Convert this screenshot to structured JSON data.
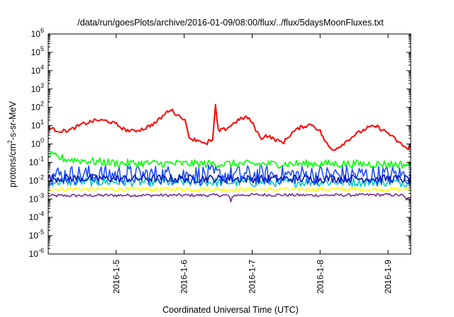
{
  "chart_data": {
    "type": "line",
    "title": "/data/run/goesPlots/archive/2016-01-09/08:00/flux/../flux/5daysMoonFluxes.txt",
    "xlabel": "Coordinated Universal Time (UTC)",
    "ylabel": {
      "base": "protons/cm",
      "sup": "2",
      "rest": "-s-sr-MeV"
    },
    "y_scale": "log",
    "ylim": [
      1e-06,
      1000000.0
    ],
    "y_ticks": [
      {
        "exp": "-6",
        "value": 1e-06
      },
      {
        "exp": "-5",
        "value": 1e-05
      },
      {
        "exp": "-4",
        "value": 0.0001
      },
      {
        "exp": "-3",
        "value": 0.001
      },
      {
        "exp": "-2",
        "value": 0.01
      },
      {
        "exp": "-1",
        "value": 0.1
      },
      {
        "exp": "0",
        "value": 1
      },
      {
        "exp": "1",
        "value": 10
      },
      {
        "exp": "2",
        "value": 100
      },
      {
        "exp": "3",
        "value": 1000
      },
      {
        "exp": "4",
        "value": 10000
      },
      {
        "exp": "5",
        "value": 100000
      },
      {
        "exp": "6",
        "value": 1000000
      }
    ],
    "y_tick_base": "10",
    "xlim": [
      "2016-01-04 00:00",
      "2016-01-09 08:00"
    ],
    "x_ticks": [
      {
        "label": "2016-1-5",
        "value": "2016-01-05 00:00"
      },
      {
        "label": "2016-1-6",
        "value": "2016-01-06 00:00"
      },
      {
        "label": "2016-1-7",
        "value": "2016-01-07 00:00"
      },
      {
        "label": "2016-1-8",
        "value": "2016-01-08 00:00"
      },
      {
        "label": "2016-1-9",
        "value": "2016-01-09 00:00"
      }
    ],
    "grid": false,
    "legend": "none",
    "series": [
      {
        "color": "#7b2d8e",
        "noise": 0.08,
        "points": [
          [
            "2016-01-04 00:00",
            0.0015
          ],
          [
            "2016-01-05 00:00",
            0.0016
          ],
          [
            "2016-01-06 00:00",
            0.0016
          ],
          [
            "2016-01-06 15:50",
            0.0016
          ],
          [
            "2016-01-06 16:30",
            0.0006
          ],
          [
            "2016-01-06 17:10",
            0.0016
          ],
          [
            "2016-01-07 00:00",
            0.0017
          ],
          [
            "2016-01-08 00:00",
            0.0016
          ],
          [
            "2016-01-09 00:00",
            0.0017
          ],
          [
            "2016-01-09 05:00",
            0.0016
          ],
          [
            "2016-01-09 06:30",
            0.001
          ],
          [
            "2016-01-09 08:00",
            0.0011
          ]
        ]
      },
      {
        "color": "#ffff00",
        "noise": 0.1,
        "points": [
          [
            "2016-01-04 00:00",
            0.0035
          ],
          [
            "2016-01-05 00:00",
            0.0034
          ],
          [
            "2016-01-06 00:00",
            0.0034
          ],
          [
            "2016-01-07 00:00",
            0.0033
          ],
          [
            "2016-01-08 00:00",
            0.0034
          ],
          [
            "2016-01-09 00:00",
            0.0034
          ],
          [
            "2016-01-09 08:00",
            0.0033
          ]
        ]
      },
      {
        "color": "#00c8c8",
        "noise": 0.25,
        "points": [
          [
            "2016-01-04 00:00",
            0.009
          ],
          [
            "2016-01-05 00:00",
            0.0085
          ],
          [
            "2016-01-06 00:00",
            0.0085
          ],
          [
            "2016-01-07 00:00",
            0.008
          ],
          [
            "2016-01-08 00:00",
            0.0085
          ],
          [
            "2016-01-09 00:00",
            0.0085
          ],
          [
            "2016-01-09 08:00",
            0.008
          ]
        ]
      },
      {
        "color": "#1e50ff",
        "noise": 0.55,
        "points": [
          [
            "2016-01-04 00:00",
            0.02
          ],
          [
            "2016-01-05 00:00",
            0.021
          ],
          [
            "2016-01-06 00:00",
            0.02
          ],
          [
            "2016-01-07 00:00",
            0.02
          ],
          [
            "2016-01-08 00:00",
            0.021
          ],
          [
            "2016-01-09 00:00",
            0.02
          ],
          [
            "2016-01-09 08:00",
            0.02
          ]
        ]
      },
      {
        "color": "#0a14b4",
        "noise": 0.22,
        "points": [
          [
            "2016-01-04 00:00",
            0.014
          ],
          [
            "2016-01-05 00:00",
            0.013
          ],
          [
            "2016-01-06 00:00",
            0.013
          ],
          [
            "2016-01-07 00:00",
            0.0125
          ],
          [
            "2016-01-08 00:00",
            0.013
          ],
          [
            "2016-01-09 00:00",
            0.013
          ],
          [
            "2016-01-09 08:00",
            0.012
          ]
        ]
      },
      {
        "color": "#00ff00",
        "noise": 0.22,
        "points": [
          [
            "2016-01-04 00:00",
            0.25
          ],
          [
            "2016-01-04 06:00",
            0.15
          ],
          [
            "2016-01-05 00:00",
            0.09
          ],
          [
            "2016-01-06 00:00",
            0.085
          ],
          [
            "2016-01-07 00:00",
            0.08
          ],
          [
            "2016-01-08 00:00",
            0.085
          ],
          [
            "2016-01-09 00:00",
            0.08
          ],
          [
            "2016-01-09 08:00",
            0.075
          ]
        ]
      },
      {
        "color": "#ff0000",
        "noise": 0.1,
        "points": [
          [
            "2016-01-04 00:00",
            8
          ],
          [
            "2016-01-04 02:00",
            6
          ],
          [
            "2016-01-04 05:00",
            5
          ],
          [
            "2016-01-04 08:00",
            6
          ],
          [
            "2016-01-04 12:00",
            12
          ],
          [
            "2016-01-04 17:00",
            20
          ],
          [
            "2016-01-04 21:00",
            18
          ],
          [
            "2016-01-05 00:00",
            12
          ],
          [
            "2016-01-05 03:00",
            6
          ],
          [
            "2016-01-05 06:00",
            5
          ],
          [
            "2016-01-05 10:00",
            7
          ],
          [
            "2016-01-05 14:00",
            15
          ],
          [
            "2016-01-05 17:00",
            40
          ],
          [
            "2016-01-05 19:00",
            80
          ],
          [
            "2016-01-05 22:00",
            35
          ],
          [
            "2016-01-06 00:00",
            25
          ],
          [
            "2016-01-06 02:00",
            2
          ],
          [
            "2016-01-06 06:00",
            1.5
          ],
          [
            "2016-01-06 08:00",
            0.8
          ],
          [
            "2016-01-06 09:00",
            2
          ],
          [
            "2016-01-06 10:00",
            1
          ],
          [
            "2016-01-06 11:00",
            150
          ],
          [
            "2016-01-06 12:00",
            5
          ],
          [
            "2016-01-06 15:00",
            7
          ],
          [
            "2016-01-06 19:00",
            20
          ],
          [
            "2016-01-06 22:00",
            30
          ],
          [
            "2016-01-07 00:00",
            15
          ],
          [
            "2016-01-07 03:00",
            2
          ],
          [
            "2016-01-07 05:00",
            3
          ],
          [
            "2016-01-07 09:00",
            1.5
          ],
          [
            "2016-01-07 11:00",
            1.2
          ],
          [
            "2016-01-07 14:00",
            4
          ],
          [
            "2016-01-07 17:00",
            8
          ],
          [
            "2016-01-07 21:00",
            12
          ],
          [
            "2016-01-08 00:00",
            5
          ],
          [
            "2016-01-08 02:00",
            1.2
          ],
          [
            "2016-01-08 04:00",
            0.5
          ],
          [
            "2016-01-08 06:00",
            0.6
          ],
          [
            "2016-01-08 08:00",
            1
          ],
          [
            "2016-01-08 12:00",
            3
          ],
          [
            "2016-01-08 17:00",
            8
          ],
          [
            "2016-01-08 20:00",
            9
          ],
          [
            "2016-01-09 00:00",
            4
          ],
          [
            "2016-01-09 03:00",
            1.5
          ],
          [
            "2016-01-09 06:00",
            0.7
          ],
          [
            "2016-01-09 07:00",
            0.5
          ],
          [
            "2016-01-09 08:00",
            0.9
          ]
        ]
      }
    ]
  }
}
